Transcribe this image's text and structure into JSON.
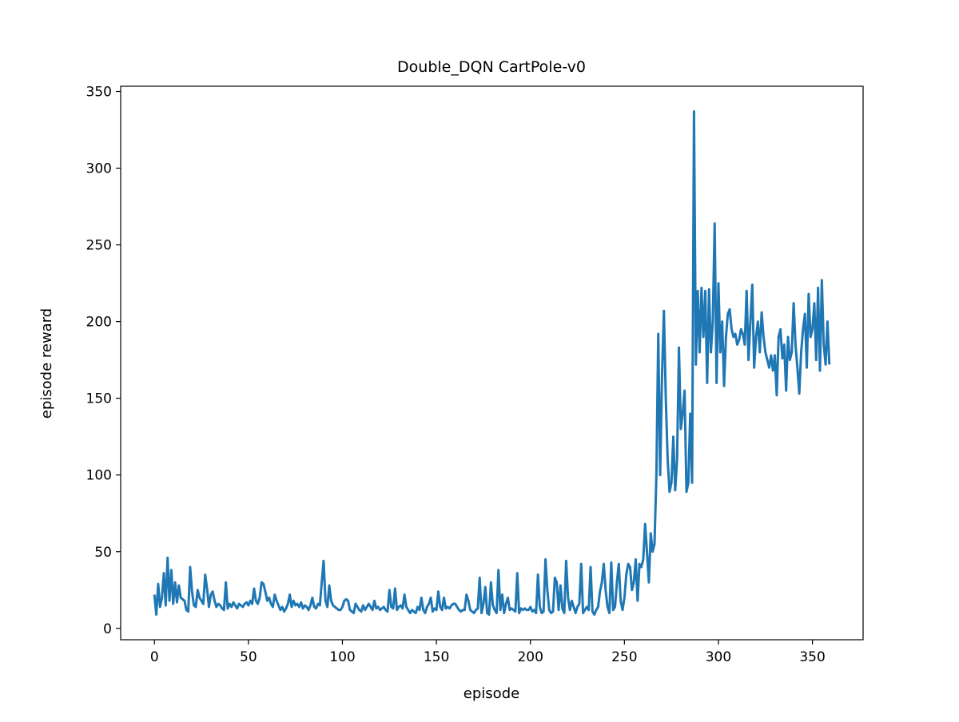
{
  "chart_data": {
    "type": "line",
    "title": "Double_DQN CartPole-v0",
    "xlabel": "episode",
    "ylabel": "episode reward",
    "xlim": [
      -17.95,
      376.95
    ],
    "ylim": [
      -7.4,
      353.4
    ],
    "xticks": [
      0,
      50,
      100,
      150,
      200,
      250,
      300,
      350
    ],
    "yticks": [
      0,
      50,
      100,
      150,
      200,
      250,
      300,
      350
    ],
    "grid": false,
    "color": "#1f77b4",
    "series": [
      {
        "values": [
          22,
          9,
          29,
          14,
          20,
          36,
          15,
          46,
          18,
          38,
          16,
          30,
          17,
          28,
          20,
          19,
          18,
          12,
          11,
          40,
          24,
          15,
          14,
          25,
          20,
          18,
          16,
          35,
          26,
          14,
          22,
          24,
          18,
          14,
          16,
          15,
          13,
          12,
          30,
          13,
          16,
          14,
          17,
          15,
          13,
          16,
          15,
          14,
          16,
          17,
          15,
          18,
          16,
          26,
          18,
          16,
          20,
          30,
          29,
          24,
          18,
          20,
          16,
          14,
          22,
          18,
          15,
          12,
          14,
          11,
          13,
          16,
          22,
          14,
          18,
          15,
          16,
          14,
          17,
          13,
          15,
          14,
          12,
          15,
          20,
          14,
          13,
          16,
          15,
          30,
          44,
          18,
          14,
          28,
          18,
          15,
          14,
          13,
          12,
          12,
          14,
          18,
          19,
          18,
          12,
          11,
          10,
          16,
          14,
          12,
          11,
          15,
          12,
          14,
          16,
          14,
          12,
          18,
          13,
          14,
          12,
          13,
          14,
          12,
          11,
          25,
          14,
          13,
          26,
          12,
          14,
          15,
          13,
          22,
          14,
          12,
          10,
          12,
          11,
          10,
          14,
          12,
          20,
          12,
          10,
          14,
          16,
          20,
          11,
          13,
          12,
          24,
          14,
          12,
          20,
          13,
          14,
          13,
          15,
          16,
          16,
          14,
          12,
          11,
          12,
          12,
          22,
          18,
          12,
          11,
          10,
          12,
          13,
          33,
          10,
          16,
          27,
          10,
          9,
          30,
          15,
          12,
          10,
          38,
          12,
          22,
          10,
          16,
          20,
          12,
          13,
          12,
          11,
          36,
          10,
          13,
          12,
          13,
          12,
          12,
          14,
          11,
          12,
          10,
          35,
          14,
          10,
          11,
          45,
          25,
          12,
          10,
          11,
          33,
          30,
          12,
          28,
          13,
          10,
          44,
          20,
          12,
          18,
          14,
          10,
          14,
          16,
          42,
          10,
          12,
          14,
          12,
          40,
          11,
          9,
          12,
          14,
          24,
          30,
          42,
          25,
          14,
          10,
          43,
          12,
          14,
          30,
          42,
          18,
          12,
          20,
          35,
          42,
          40,
          25,
          30,
          45,
          18,
          42,
          40,
          45,
          68,
          50,
          30,
          62,
          50,
          55,
          100,
          192,
          100,
          165,
          207,
          150,
          110,
          89,
          95,
          125,
          90,
          110,
          183,
          130,
          140,
          155,
          89,
          95,
          140,
          95,
          337,
          172,
          220,
          180,
          222,
          190,
          220,
          160,
          221,
          180,
          200,
          264,
          160,
          225,
          180,
          200,
          158,
          190,
          205,
          208,
          195,
          190,
          192,
          185,
          188,
          195,
          192,
          185,
          220,
          175,
          200,
          224,
          170,
          190,
          200,
          180,
          206,
          190,
          180,
          175,
          170,
          178,
          168,
          178,
          152,
          190,
          195,
          176,
          185,
          155,
          190,
          175,
          180,
          212,
          185,
          170,
          153,
          180,
          195,
          205,
          170,
          218,
          190,
          195,
          212,
          175,
          222,
          168,
          227,
          185,
          172,
          200,
          172
        ]
      }
    ]
  }
}
